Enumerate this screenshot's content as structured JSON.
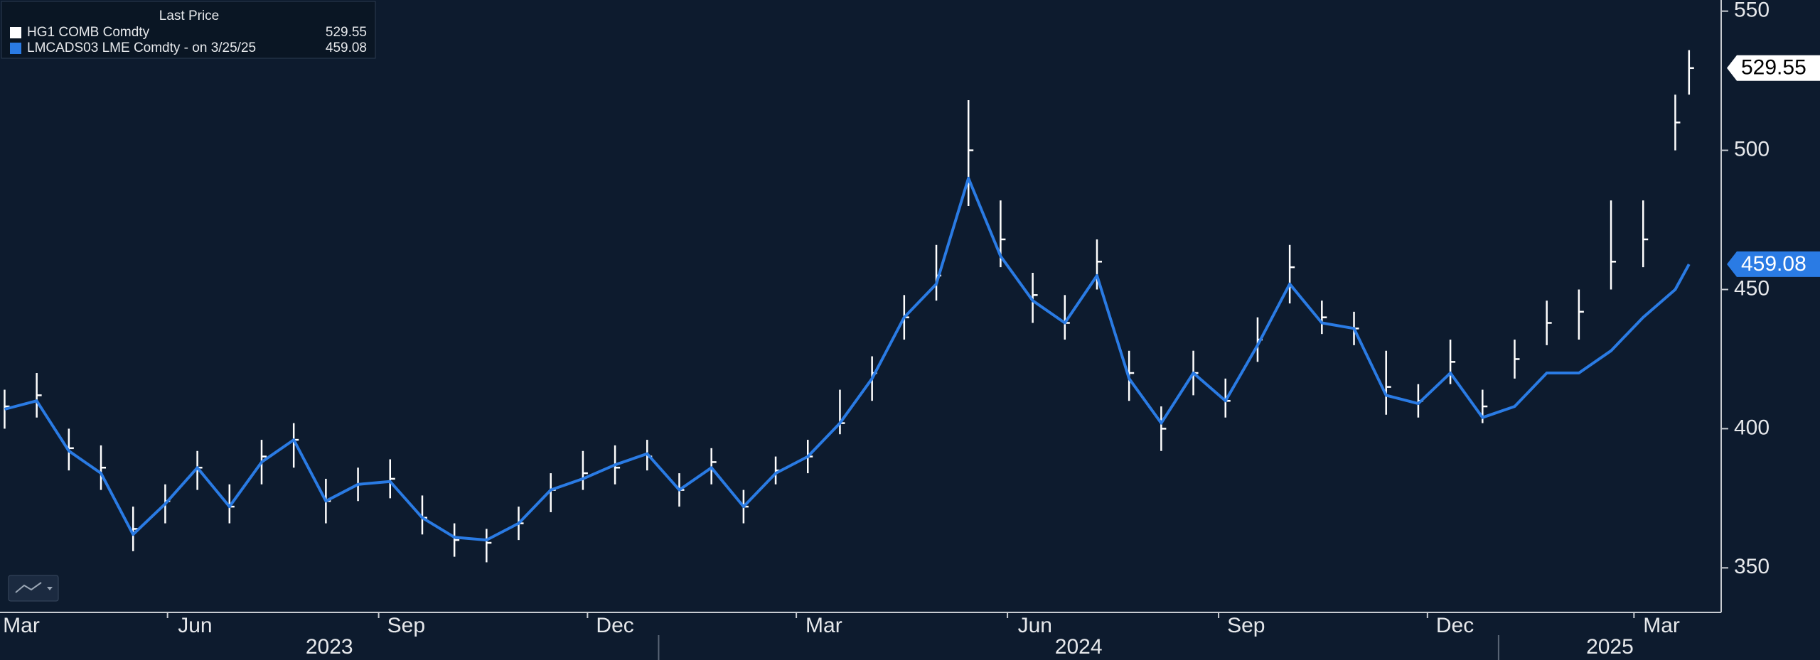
{
  "chart_data": {
    "type": "ohlc-line",
    "legend_title": "Last Price",
    "x": [
      "2023-03-22",
      "2023-04-05",
      "2023-04-19",
      "2023-05-03",
      "2023-05-17",
      "2023-05-31",
      "2023-06-14",
      "2023-06-28",
      "2023-07-12",
      "2023-07-26",
      "2023-08-09",
      "2023-08-23",
      "2023-09-06",
      "2023-09-20",
      "2023-10-04",
      "2023-10-18",
      "2023-11-01",
      "2023-11-15",
      "2023-11-29",
      "2023-12-13",
      "2023-12-27",
      "2024-01-10",
      "2024-01-24",
      "2024-02-07",
      "2024-02-21",
      "2024-03-06",
      "2024-03-20",
      "2024-04-03",
      "2024-04-17",
      "2024-05-01",
      "2024-05-15",
      "2024-05-29",
      "2024-06-12",
      "2024-06-26",
      "2024-07-10",
      "2024-07-24",
      "2024-08-07",
      "2024-08-21",
      "2024-09-04",
      "2024-09-18",
      "2024-10-02",
      "2024-10-16",
      "2024-10-30",
      "2024-11-13",
      "2024-11-27",
      "2024-12-11",
      "2024-12-25",
      "2025-01-08",
      "2025-01-22",
      "2025-02-05",
      "2025-02-19",
      "2025-03-05",
      "2025-03-19",
      "2025-03-25"
    ],
    "series": [
      {
        "name": "HG1 COMB Comdty",
        "color": "#ffffff",
        "values": [
          408,
          412,
          393,
          386,
          364,
          374,
          386,
          372,
          390,
          396,
          374,
          380,
          382,
          368,
          360,
          359,
          366,
          378,
          384,
          386,
          390,
          378,
          388,
          372,
          385,
          390,
          402,
          420,
          440,
          455,
          500,
          468,
          448,
          438,
          460,
          420,
          400,
          420,
          410,
          432,
          458,
          440,
          436,
          415,
          410,
          424,
          408,
          425,
          438,
          442,
          460,
          468,
          510,
          529.55
        ],
        "low": [
          400,
          404,
          385,
          378,
          356,
          366,
          378,
          366,
          380,
          386,
          366,
          374,
          375,
          362,
          354,
          352,
          360,
          370,
          378,
          380,
          385,
          372,
          380,
          366,
          380,
          384,
          398,
          410,
          432,
          446,
          480,
          458,
          438,
          432,
          450,
          410,
          392,
          412,
          404,
          424,
          445,
          434,
          430,
          405,
          404,
          416,
          402,
          418,
          430,
          432,
          450,
          458,
          500,
          520
        ],
        "high": [
          414,
          420,
          400,
          394,
          372,
          380,
          392,
          380,
          396,
          402,
          382,
          386,
          389,
          376,
          366,
          364,
          372,
          384,
          392,
          394,
          396,
          384,
          393,
          378,
          390,
          396,
          414,
          426,
          448,
          466,
          518,
          482,
          456,
          448,
          468,
          428,
          408,
          428,
          418,
          440,
          466,
          446,
          442,
          428,
          416,
          432,
          414,
          432,
          446,
          450,
          482,
          482,
          520,
          536
        ]
      },
      {
        "name": "LMCADS03 LME Comdty -  on 3/25/25",
        "color": "#2a7be4",
        "values": [
          407,
          410,
          392,
          384,
          362,
          373,
          386,
          372,
          388,
          396,
          374,
          380,
          381,
          368,
          361,
          360,
          366,
          378,
          382,
          387,
          391,
          378,
          386,
          372,
          384,
          390,
          402,
          418,
          440,
          452,
          490,
          462,
          446,
          438,
          455,
          418,
          402,
          420,
          410,
          430,
          452,
          438,
          436,
          412,
          409,
          420,
          404,
          408,
          420,
          420,
          428,
          440,
          450,
          459.08
        ]
      }
    ],
    "xlim": [
      "2023-03-20",
      "2025-04-08"
    ],
    "xticks": [
      {
        "value": "2023-03-01",
        "label": "Mar"
      },
      {
        "value": "2023-06-01",
        "label": "Jun"
      },
      {
        "value": "2023-09-01",
        "label": "Sep"
      },
      {
        "value": "2023-12-01",
        "label": "Dec"
      },
      {
        "value": "2024-03-01",
        "label": "Mar"
      },
      {
        "value": "2024-06-01",
        "label": "Jun"
      },
      {
        "value": "2024-09-01",
        "label": "Sep"
      },
      {
        "value": "2024-12-01",
        "label": "Dec"
      },
      {
        "value": "2025-03-01",
        "label": "Mar"
      }
    ],
    "years": [
      "2023",
      "2024",
      "2025"
    ],
    "ylim": [
      334,
      554
    ],
    "yticks": [
      350,
      400,
      450,
      500,
      550
    ]
  }
}
